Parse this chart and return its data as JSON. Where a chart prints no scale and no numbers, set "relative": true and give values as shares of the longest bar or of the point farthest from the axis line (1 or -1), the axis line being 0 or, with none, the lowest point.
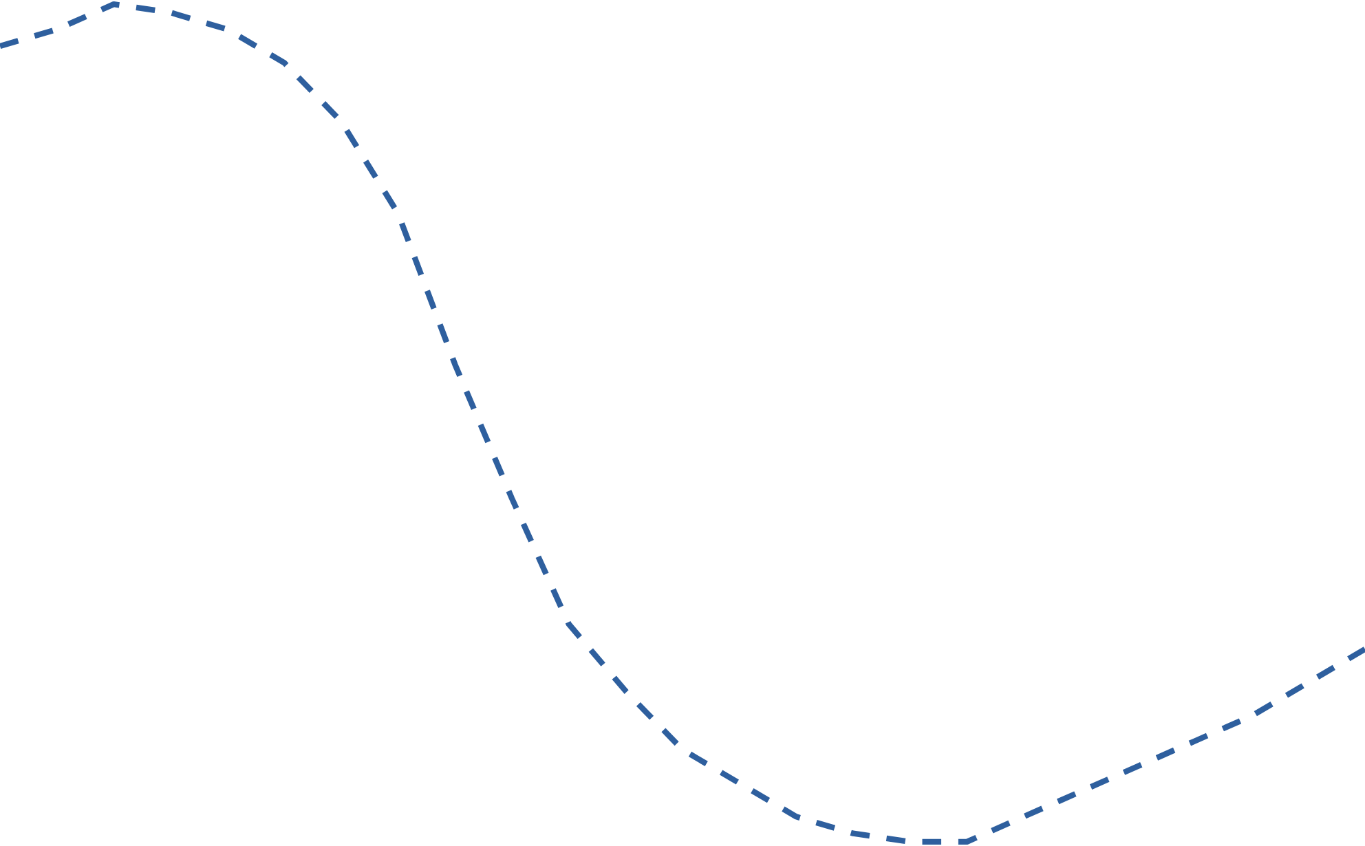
{
  "chart_data": {
    "type": "line",
    "relative": true,
    "line_style": "dashed",
    "categories": [
      null,
      null,
      null,
      null,
      null,
      null,
      null,
      null,
      null,
      null,
      null,
      null,
      null,
      null,
      null,
      null,
      null,
      null,
      null,
      null,
      null,
      null,
      null,
      null,
      null
    ],
    "series": [
      {
        "color": "#2e5f9e",
        "values": [
          0.95,
          0.97,
          1.0,
          0.99,
          0.97,
          0.93,
          0.86,
          0.75,
          0.57,
          0.41,
          0.26,
          0.18,
          0.11,
          0.07,
          0.03,
          0.01,
          0.0,
          0.0,
          0.03,
          0.06,
          0.09,
          0.12,
          0.15,
          0.19,
          0.23
        ]
      }
    ]
  }
}
